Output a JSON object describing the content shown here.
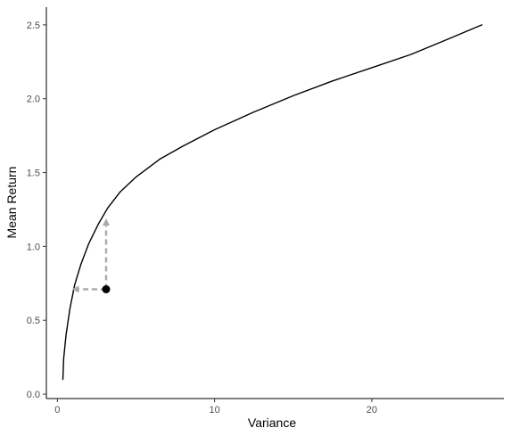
{
  "chart_data": {
    "type": "line",
    "title": "",
    "xlabel": "Variance",
    "ylabel": "Mean Return",
    "xlim": [
      -0.7,
      28.4
    ],
    "ylim": [
      -0.03,
      2.62
    ],
    "x_ticks": [
      0,
      10,
      20
    ],
    "x_tick_labels": [
      "0",
      "10",
      "20"
    ],
    "y_ticks": [
      0.0,
      0.5,
      1.0,
      1.5,
      2.0,
      2.5
    ],
    "y_tick_labels": [
      "0.0",
      "0.5",
      "1.0",
      "1.5",
      "2.0",
      "2.5"
    ],
    "grid": false,
    "legend": "none",
    "series": [
      {
        "style": "solid",
        "color": "#000000",
        "x": [
          0.35,
          0.4,
          0.55,
          0.8,
          1.1,
          1.5,
          2.0,
          2.6,
          3.2,
          4.0,
          5.0,
          6.5,
          8.0,
          10.0,
          12.5,
          15.0,
          17.5,
          20.0,
          22.5,
          25.0,
          27.0
        ],
        "y": [
          0.1,
          0.24,
          0.4,
          0.58,
          0.74,
          0.88,
          1.02,
          1.15,
          1.26,
          1.37,
          1.47,
          1.59,
          1.68,
          1.79,
          1.91,
          2.02,
          2.12,
          2.21,
          2.3,
          2.41,
          2.5
        ]
      }
    ],
    "point": {
      "x": 3.1,
      "y": 0.71,
      "color": "#000000"
    },
    "arrows": [
      {
        "from": [
          3.1,
          0.71
        ],
        "to": [
          3.1,
          1.18
        ],
        "color": "#aaaaaa",
        "style": "dashed"
      },
      {
        "from": [
          3.1,
          0.71
        ],
        "to": [
          1.0,
          0.71
        ],
        "color": "#aaaaaa",
        "style": "dashed"
      }
    ]
  }
}
